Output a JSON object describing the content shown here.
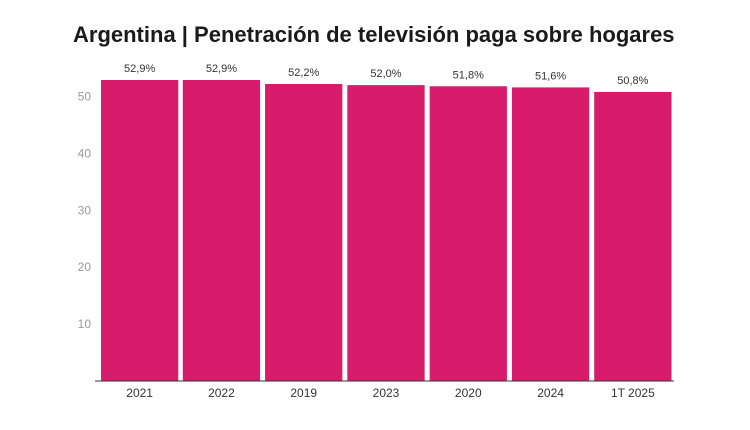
{
  "chart_data": {
    "type": "bar",
    "title": "Argentina | Penetración de televisión paga sobre hogares",
    "xlabel": "",
    "ylabel": "",
    "categories": [
      "2021",
      "2022",
      "2019",
      "2023",
      "2020",
      "2024",
      "1T 2025"
    ],
    "values": [
      52.9,
      52.9,
      52.2,
      52.0,
      51.8,
      51.6,
      50.8
    ],
    "data_labels": [
      "52,9%",
      "52,9%",
      "52,2%",
      "52,0%",
      "51,8%",
      "51,6%",
      "50,8%"
    ],
    "yticks": [
      10,
      20,
      30,
      40,
      50
    ],
    "ylim": [
      0,
      52.9
    ],
    "grid": false,
    "legend": "none",
    "colors": {
      "bar": "#d81b6b",
      "axis": "#333333"
    }
  }
}
